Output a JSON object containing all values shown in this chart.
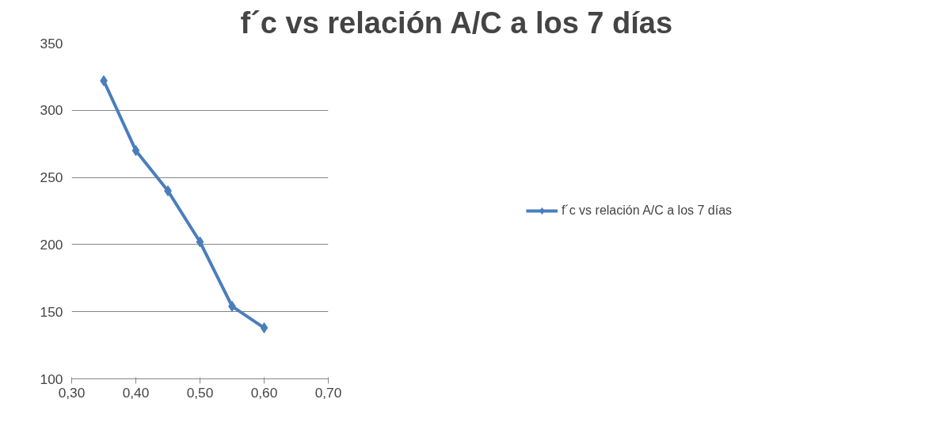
{
  "chart_data": {
    "type": "line",
    "title": "f´c vs relación A/C a los 7 días",
    "x": [
      0.35,
      0.4,
      0.45,
      0.5,
      0.55,
      0.6
    ],
    "series": [
      {
        "name": "f´c vs relación A/C a los 7 días",
        "color": "#4a7ebb",
        "values": [
          322,
          270,
          240,
          202,
          154,
          138
        ]
      }
    ],
    "xlim": [
      0.3,
      0.7
    ],
    "ylim": [
      100,
      350
    ],
    "xticks": [
      {
        "value": 0.3,
        "label": "0,30"
      },
      {
        "value": 0.4,
        "label": "0,40"
      },
      {
        "value": 0.5,
        "label": "0,50"
      },
      {
        "value": 0.6,
        "label": "0,60"
      },
      {
        "value": 0.7,
        "label": "0,70"
      }
    ],
    "yticks": [
      100,
      150,
      200,
      250,
      300,
      350
    ],
    "grid": "y",
    "legend": "right",
    "marker": "diamond",
    "line_style": "solid"
  }
}
